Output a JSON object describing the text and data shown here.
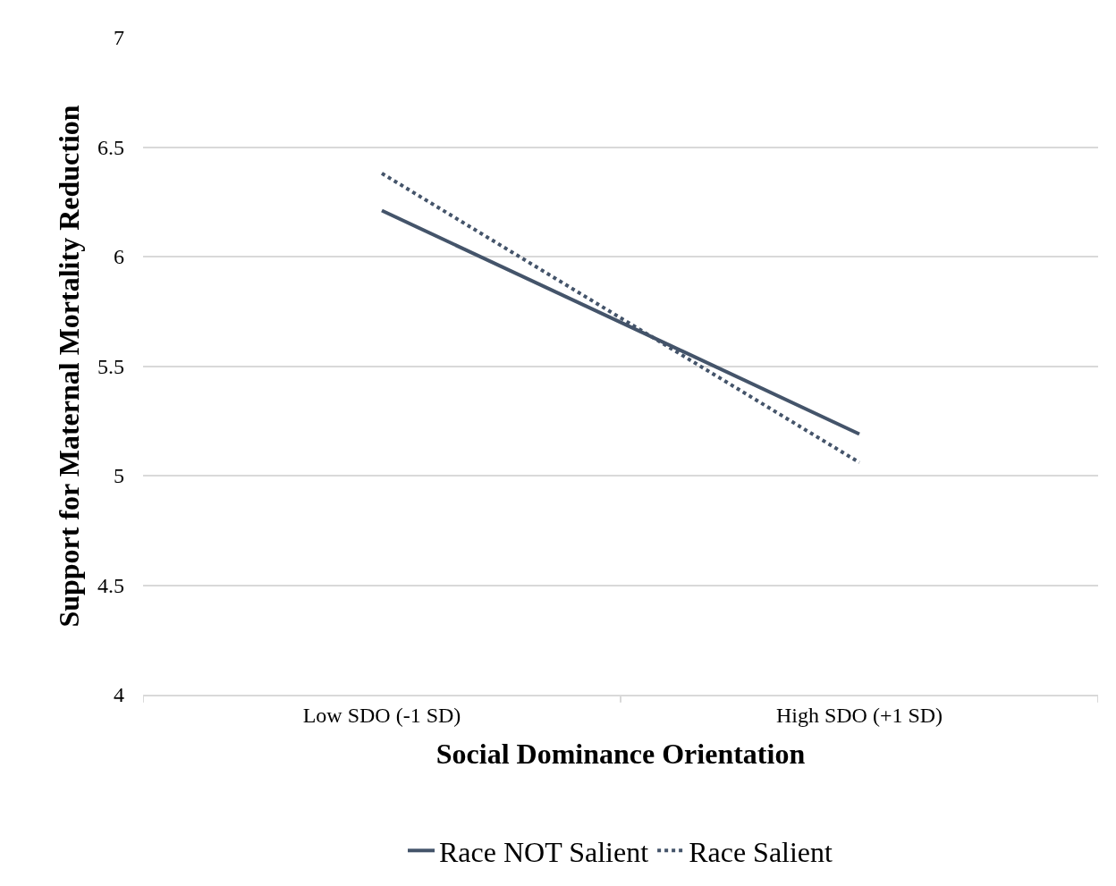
{
  "chart_data": {
    "type": "line",
    "xlabel": "Social Dominance Orientation",
    "ylabel": "Support for Maternal Mortality Reduction",
    "categories": [
      "Low SDO (-1 SD)",
      "High SDO (+1 SD)"
    ],
    "series": [
      {
        "name": "Race NOT Salient",
        "color": "#44546a",
        "values": [
          6.21,
          5.19
        ],
        "line_style": "solid"
      },
      {
        "name": "Race Salient",
        "color": "#44546a",
        "values": [
          6.38,
          5.06
        ],
        "line_style": "dotted"
      }
    ],
    "ylim": [
      4,
      7
    ],
    "yticks": [
      4,
      4.5,
      5,
      5.5,
      6,
      6.5,
      7
    ],
    "grid": "y",
    "legend": "bottom",
    "marker": "none"
  }
}
